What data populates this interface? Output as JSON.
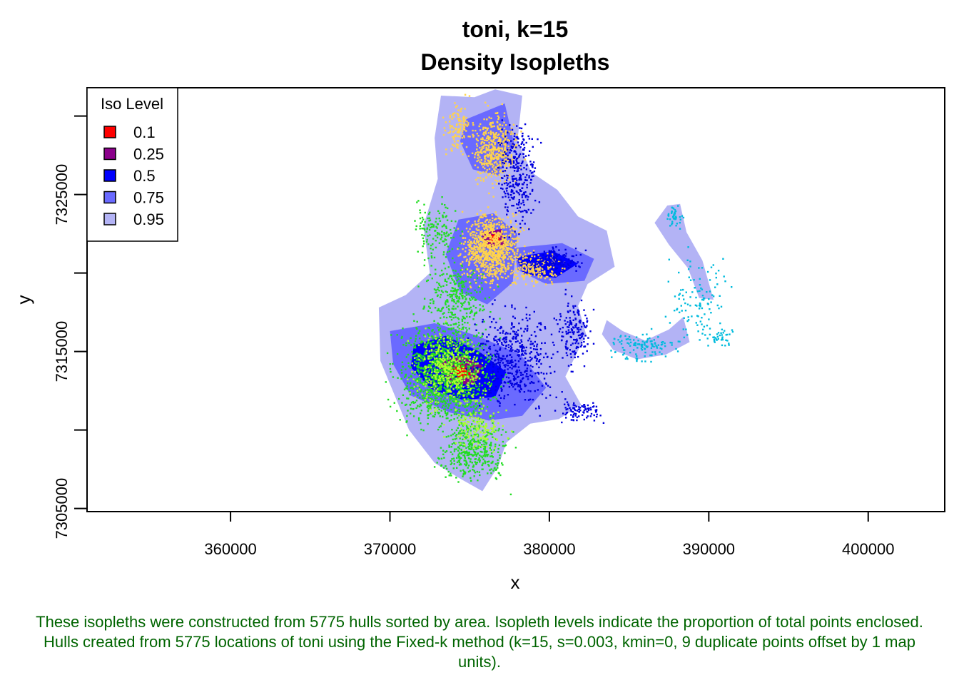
{
  "chart_data": {
    "type": "scatter",
    "title": "toni, k=15",
    "subtitle": "Density Isopleths",
    "xlabel": "x",
    "ylabel": "y",
    "xlim": [
      351000,
      404800
    ],
    "ylim": [
      7304800,
      7331800
    ],
    "x_ticks": [
      {
        "value": 360000,
        "label": "360000"
      },
      {
        "value": 370000,
        "label": "370000"
      },
      {
        "value": 380000,
        "label": "380000"
      },
      {
        "value": 390000,
        "label": "390000"
      },
      {
        "value": 400000,
        "label": "400000"
      }
    ],
    "y_ticks": [
      {
        "value": 7305000,
        "label": "7305000"
      },
      {
        "value": 7310000,
        "label": ""
      },
      {
        "value": 7315000,
        "label": "7315000"
      },
      {
        "value": 7320000,
        "label": ""
      },
      {
        "value": 7325000,
        "label": "7325000"
      },
      {
        "value": 7330000,
        "label": ""
      }
    ],
    "legend": {
      "title": "Iso Level",
      "position": "top-left",
      "entries": [
        {
          "label": "0.1",
          "color": "#FF0000"
        },
        {
          "label": "0.25",
          "color": "#8B008B"
        },
        {
          "label": "0.5",
          "color": "#0000FF"
        },
        {
          "label": "0.75",
          "color": "#6A6AFF"
        },
        {
          "label": "0.95",
          "color": "#B3B3F5"
        }
      ]
    },
    "isopleth_regions": [
      {
        "level": "0.95",
        "polygon": [
          [
            373200,
            7331300
          ],
          [
            375300,
            7331200
          ],
          [
            376600,
            7331700
          ],
          [
            378300,
            7331300
          ],
          [
            378000,
            7328400
          ],
          [
            378900,
            7326400
          ],
          [
            380500,
            7325300
          ],
          [
            381800,
            7323600
          ],
          [
            383600,
            7322700
          ],
          [
            384100,
            7320400
          ],
          [
            382400,
            7319300
          ],
          [
            381800,
            7317900
          ],
          [
            382300,
            7316100
          ],
          [
            381000,
            7313400
          ],
          [
            382000,
            7311600
          ],
          [
            380600,
            7310700
          ],
          [
            378800,
            7310400
          ],
          [
            377300,
            7309200
          ],
          [
            376800,
            7307700
          ],
          [
            375800,
            7306100
          ],
          [
            374400,
            7306900
          ],
          [
            372800,
            7307900
          ],
          [
            371200,
            7310000
          ],
          [
            370300,
            7312200
          ],
          [
            369400,
            7314400
          ],
          [
            369300,
            7317800
          ],
          [
            371000,
            7318600
          ],
          [
            372500,
            7320000
          ],
          [
            372100,
            7323000
          ],
          [
            373000,
            7326000
          ],
          [
            372800,
            7328600
          ]
        ]
      },
      {
        "level": "0.95",
        "polygon": [
          [
            383600,
            7317000
          ],
          [
            384600,
            7316300
          ],
          [
            386000,
            7315700
          ],
          [
            387500,
            7316400
          ],
          [
            388400,
            7317200
          ],
          [
            388800,
            7315600
          ],
          [
            387300,
            7314800
          ],
          [
            385500,
            7314500
          ],
          [
            384000,
            7315100
          ],
          [
            383300,
            7316100
          ]
        ]
      },
      {
        "level": "0.95",
        "polygon": [
          [
            386600,
            7323200
          ],
          [
            387400,
            7324300
          ],
          [
            388200,
            7324400
          ],
          [
            388600,
            7322600
          ],
          [
            389600,
            7320800
          ],
          [
            390300,
            7318300
          ],
          [
            389400,
            7318400
          ],
          [
            388700,
            7320300
          ],
          [
            387500,
            7321800
          ]
        ]
      },
      {
        "level": "0.75",
        "polygon": [
          [
            370000,
            7316300
          ],
          [
            372800,
            7316800
          ],
          [
            375500,
            7316000
          ],
          [
            378200,
            7314800
          ],
          [
            379800,
            7312700
          ],
          [
            378300,
            7310900
          ],
          [
            376200,
            7310600
          ],
          [
            373800,
            7311100
          ],
          [
            371300,
            7312200
          ],
          [
            370200,
            7314200
          ]
        ]
      },
      {
        "level": "0.75",
        "polygon": [
          [
            374300,
            7323400
          ],
          [
            376500,
            7323800
          ],
          [
            378000,
            7322500
          ],
          [
            377700,
            7319400
          ],
          [
            376100,
            7318000
          ],
          [
            374400,
            7318800
          ],
          [
            373500,
            7321200
          ]
        ]
      },
      {
        "level": "0.75",
        "polygon": [
          [
            374800,
            7329800
          ],
          [
            377200,
            7330800
          ],
          [
            377800,
            7328200
          ],
          [
            376800,
            7326200
          ],
          [
            375200,
            7326600
          ],
          [
            374400,
            7328400
          ]
        ]
      },
      {
        "level": "0.75",
        "polygon": [
          [
            377800,
            7321600
          ],
          [
            380800,
            7321900
          ],
          [
            382800,
            7320900
          ],
          [
            382200,
            7319500
          ],
          [
            379800,
            7319300
          ],
          [
            378000,
            7320200
          ]
        ]
      },
      {
        "level": "0.5",
        "polygon": [
          [
            371500,
            7315400
          ],
          [
            373500,
            7316000
          ],
          [
            375600,
            7315000
          ],
          [
            377300,
            7313700
          ],
          [
            376600,
            7312100
          ],
          [
            374600,
            7311900
          ],
          [
            372600,
            7312600
          ],
          [
            371300,
            7314000
          ]
        ]
      },
      {
        "level": "0.5",
        "polygon": [
          [
            377900,
            7321000
          ],
          [
            380200,
            7321400
          ],
          [
            381800,
            7320600
          ],
          [
            380400,
            7319700
          ],
          [
            378400,
            7319900
          ]
        ]
      },
      {
        "level": "0.25",
        "polygon": [
          [
            373000,
            7314200
          ],
          [
            374400,
            7314800
          ],
          [
            375800,
            7314100
          ],
          [
            375400,
            7312900
          ],
          [
            373800,
            7312900
          ]
        ]
      },
      {
        "level": "0.25",
        "polygon": [
          [
            375700,
            7322600
          ],
          [
            377000,
            7322800
          ],
          [
            377200,
            7321800
          ],
          [
            376000,
            7321600
          ]
        ]
      },
      {
        "level": "0.1",
        "polygon": [
          [
            373800,
            7313900
          ],
          [
            374600,
            7314200
          ],
          [
            375100,
            7313500
          ],
          [
            374300,
            7313200
          ]
        ]
      },
      {
        "level": "0.1",
        "polygon": [
          [
            376200,
            7322400
          ],
          [
            376800,
            7322500
          ],
          [
            376900,
            7322000
          ],
          [
            376300,
            7321900
          ]
        ]
      }
    ],
    "point_clusters": [
      {
        "color": "#22DD22",
        "cx": 373500,
        "cy": 7313500,
        "sx": 2300,
        "sy": 2500,
        "n": 1200
      },
      {
        "color": "#22DD22",
        "cx": 375200,
        "cy": 7308800,
        "sx": 1700,
        "sy": 1600,
        "n": 400
      },
      {
        "color": "#22DD22",
        "cx": 374200,
        "cy": 7318500,
        "sx": 1500,
        "sy": 1900,
        "n": 300
      },
      {
        "color": "#22DD22",
        "cx": 372900,
        "cy": 7322800,
        "sx": 1100,
        "sy": 1500,
        "n": 140
      },
      {
        "color": "#ADFF2F",
        "cx": 373800,
        "cy": 7313800,
        "sx": 1700,
        "sy": 1900,
        "n": 450
      },
      {
        "color": "#ADFF2F",
        "cx": 375500,
        "cy": 7310200,
        "sx": 1300,
        "sy": 1100,
        "n": 150
      },
      {
        "color": "#FFD34D",
        "cx": 376400,
        "cy": 7321600,
        "sx": 1400,
        "sy": 1700,
        "n": 900
      },
      {
        "color": "#FFD34D",
        "cx": 376600,
        "cy": 7327800,
        "sx": 1100,
        "sy": 1800,
        "n": 450
      },
      {
        "color": "#FFD34D",
        "cx": 379200,
        "cy": 7320300,
        "sx": 1300,
        "sy": 800,
        "n": 200
      },
      {
        "color": "#FFD34D",
        "cx": 374300,
        "cy": 7329200,
        "sx": 700,
        "sy": 1200,
        "n": 120
      },
      {
        "color": "#0000DD",
        "cx": 377800,
        "cy": 7314600,
        "sx": 2200,
        "sy": 2300,
        "n": 500
      },
      {
        "color": "#0000DD",
        "cx": 378000,
        "cy": 7326200,
        "sx": 900,
        "sy": 2500,
        "n": 300
      },
      {
        "color": "#0000DD",
        "cx": 381600,
        "cy": 7316300,
        "sx": 800,
        "sy": 1600,
        "n": 160
      },
      {
        "color": "#0000DD",
        "cx": 382000,
        "cy": 7311200,
        "sx": 1100,
        "sy": 600,
        "n": 90
      },
      {
        "color": "#0000DD",
        "cx": 380300,
        "cy": 7320800,
        "sx": 1300,
        "sy": 600,
        "n": 140
      },
      {
        "color": "#00BBDD",
        "cx": 385800,
        "cy": 7315300,
        "sx": 1700,
        "sy": 700,
        "n": 120
      },
      {
        "color": "#00BBDD",
        "cx": 389300,
        "cy": 7318500,
        "sx": 1400,
        "sy": 2200,
        "n": 110
      },
      {
        "color": "#00BBDD",
        "cx": 387900,
        "cy": 7323600,
        "sx": 500,
        "sy": 600,
        "n": 40
      },
      {
        "color": "#00BBDD",
        "cx": 390600,
        "cy": 7315900,
        "sx": 900,
        "sy": 500,
        "n": 40
      }
    ]
  },
  "caption": "These isopleths were constructed from 5775 hulls sorted by area. Isopleth levels indicate the proportion of total points enclosed. Hulls created from 5775 locations of toni using the Fixed-k method (k=15, s=0.003, kmin=0, 9 duplicate points offset by 1 map units)."
}
